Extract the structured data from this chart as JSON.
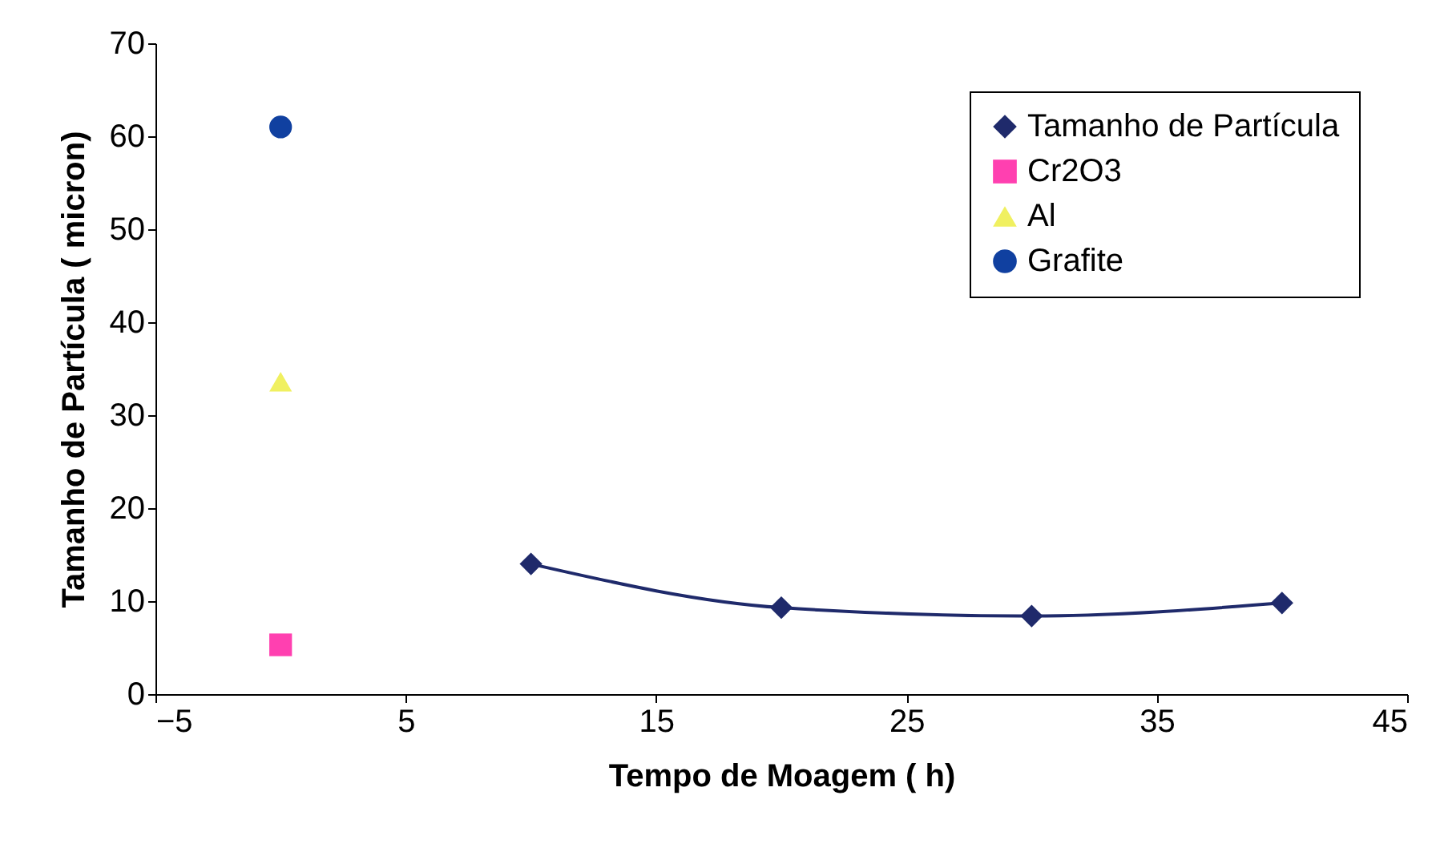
{
  "chart_data": {
    "type": "scatter",
    "xlabel": "Tempo de Moagem ( h)",
    "ylabel": "Tamanho de Partícula ( micron)",
    "xlim": [
      -5,
      45
    ],
    "xticks": [
      -5,
      5,
      15,
      25,
      35,
      45
    ],
    "ylim": [
      0,
      70
    ],
    "yticks": [
      0,
      10,
      20,
      30,
      40,
      50,
      60,
      70
    ],
    "grid": false,
    "legend": "top right",
    "series": [
      {
        "name": "Tamanho de Partícula",
        "type": "line",
        "color": "#1f2a6b",
        "marker": "diamond",
        "x": [
          10,
          20,
          30,
          40
        ],
        "values": [
          14,
          9.3,
          8.4,
          9.8
        ]
      },
      {
        "name": "Cr2O3",
        "type": "scatter",
        "color": "#ff40b0",
        "marker": "square",
        "x": [
          0
        ],
        "values": [
          5.3
        ]
      },
      {
        "name": "Al",
        "type": "scatter",
        "color": "#f0f060",
        "marker": "triangle",
        "x": [
          0
        ],
        "values": [
          33.6
        ]
      },
      {
        "name": "Grafite",
        "type": "scatter",
        "color": "#1040a0",
        "marker": "circle",
        "x": [
          0
        ],
        "values": [
          61
        ]
      }
    ]
  }
}
